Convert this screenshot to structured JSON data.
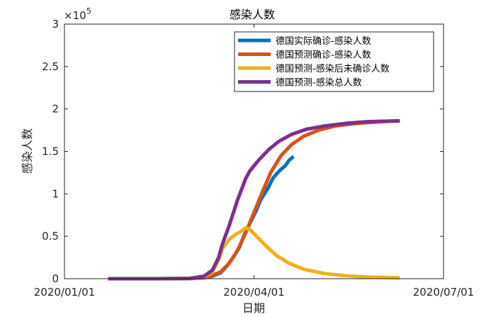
{
  "chart_data": {
    "type": "line",
    "title": "感染人数",
    "xlabel": "日期",
    "ylabel": "感染人数",
    "y_exponent_label": "×10",
    "y_exponent_power": "5",
    "x_ticks": [
      "2020/01/01",
      "2020/04/01",
      "2020/07/01"
    ],
    "x_tick_days": [
      0,
      91,
      182
    ],
    "xlim_days": [
      0,
      182
    ],
    "xlim": [
      "2020/01/01",
      "2020/07/01"
    ],
    "y_ticks": [
      "0",
      "0.5",
      "1",
      "1.5",
      "2",
      "2.5",
      "3"
    ],
    "y_tick_values": [
      0,
      0.5,
      1,
      1.5,
      2,
      2.5,
      3
    ],
    "ylim": [
      0,
      3
    ],
    "y_unit_multiplier": 100000,
    "grid": false,
    "legend_position": "top-right",
    "series": [
      {
        "name": "德国实际确诊-感染人数",
        "color": "#0072BD",
        "points": [
          [
            "2020/01/22",
            0
          ],
          [
            "2020/02/15",
            0
          ],
          [
            "2020/03/01",
            0.001
          ],
          [
            "2020/03/08",
            0.01
          ],
          [
            "2020/03/12",
            0.03
          ],
          [
            "2020/03/16",
            0.07
          ],
          [
            "2020/03/19",
            0.15
          ],
          [
            "2020/03/22",
            0.25
          ],
          [
            "2020/03/25",
            0.37
          ],
          [
            "2020/03/27",
            0.5
          ],
          [
            "2020/03/29",
            0.6
          ],
          [
            "2020/03/31",
            0.7
          ],
          [
            "2020/04/02",
            0.8
          ],
          [
            "2020/04/04",
            0.92
          ],
          [
            "2020/04/06",
            1.0
          ],
          [
            "2020/04/08",
            1.08
          ],
          [
            "2020/04/10",
            1.18
          ],
          [
            "2020/04/12",
            1.24
          ],
          [
            "2020/04/14",
            1.29
          ],
          [
            "2020/04/16",
            1.33
          ],
          [
            "2020/04/18",
            1.4
          ],
          [
            "2020/04/20",
            1.44
          ]
        ]
      },
      {
        "name": "德国预测确诊-感染人数",
        "color": "#D95319",
        "points": [
          [
            "2020/01/22",
            0
          ],
          [
            "2020/02/15",
            0
          ],
          [
            "2020/03/01",
            0.002
          ],
          [
            "2020/03/10",
            0.02
          ],
          [
            "2020/03/16",
            0.08
          ],
          [
            "2020/03/20",
            0.18
          ],
          [
            "2020/03/24",
            0.33
          ],
          [
            "2020/03/28",
            0.54
          ],
          [
            "2020/04/01",
            0.78
          ],
          [
            "2020/04/05",
            1.02
          ],
          [
            "2020/04/09",
            1.25
          ],
          [
            "2020/04/14",
            1.45
          ],
          [
            "2020/04/19",
            1.58
          ],
          [
            "2020/04/25",
            1.68
          ],
          [
            "2020/05/02",
            1.75
          ],
          [
            "2020/05/10",
            1.8
          ],
          [
            "2020/05/20",
            1.83
          ],
          [
            "2020/06/01",
            1.85
          ],
          [
            "2020/06/10",
            1.86
          ]
        ]
      },
      {
        "name": "德国预测-感染后未确诊人数",
        "color": "#EDB120",
        "points": [
          [
            "2020/01/22",
            0
          ],
          [
            "2020/02/15",
            0
          ],
          [
            "2020/03/01",
            0.002
          ],
          [
            "2020/03/08",
            0.02
          ],
          [
            "2020/03/12",
            0.08
          ],
          [
            "2020/03/15",
            0.22
          ],
          [
            "2020/03/17",
            0.36
          ],
          [
            "2020/03/20",
            0.46
          ],
          [
            "2020/03/23",
            0.52
          ],
          [
            "2020/03/26",
            0.56
          ],
          [
            "2020/03/28",
            0.6
          ],
          [
            "2020/03/30",
            0.58
          ],
          [
            "2020/04/03",
            0.48
          ],
          [
            "2020/04/07",
            0.38
          ],
          [
            "2020/04/12",
            0.27
          ],
          [
            "2020/04/18",
            0.18
          ],
          [
            "2020/04/25",
            0.11
          ],
          [
            "2020/05/05",
            0.06
          ],
          [
            "2020/05/15",
            0.035
          ],
          [
            "2020/05/25",
            0.02
          ],
          [
            "2020/06/10",
            0.01
          ]
        ]
      },
      {
        "name": "德国预测-感染总人数",
        "color": "#7E2F8E",
        "points": [
          [
            "2020/01/22",
            0
          ],
          [
            "2020/02/15",
            0
          ],
          [
            "2020/03/01",
            0.003
          ],
          [
            "2020/03/08",
            0.03
          ],
          [
            "2020/03/12",
            0.1
          ],
          [
            "2020/03/15",
            0.25
          ],
          [
            "2020/03/17",
            0.42
          ],
          [
            "2020/03/20",
            0.62
          ],
          [
            "2020/03/24",
            0.92
          ],
          [
            "2020/03/28",
            1.18
          ],
          [
            "2020/03/30",
            1.27
          ],
          [
            "2020/04/03",
            1.39
          ],
          [
            "2020/04/08",
            1.52
          ],
          [
            "2020/04/13",
            1.62
          ],
          [
            "2020/04/19",
            1.7
          ],
          [
            "2020/04/26",
            1.76
          ],
          [
            "2020/05/05",
            1.8
          ],
          [
            "2020/05/15",
            1.83
          ],
          [
            "2020/05/25",
            1.85
          ],
          [
            "2020/06/10",
            1.86
          ]
        ]
      }
    ]
  }
}
